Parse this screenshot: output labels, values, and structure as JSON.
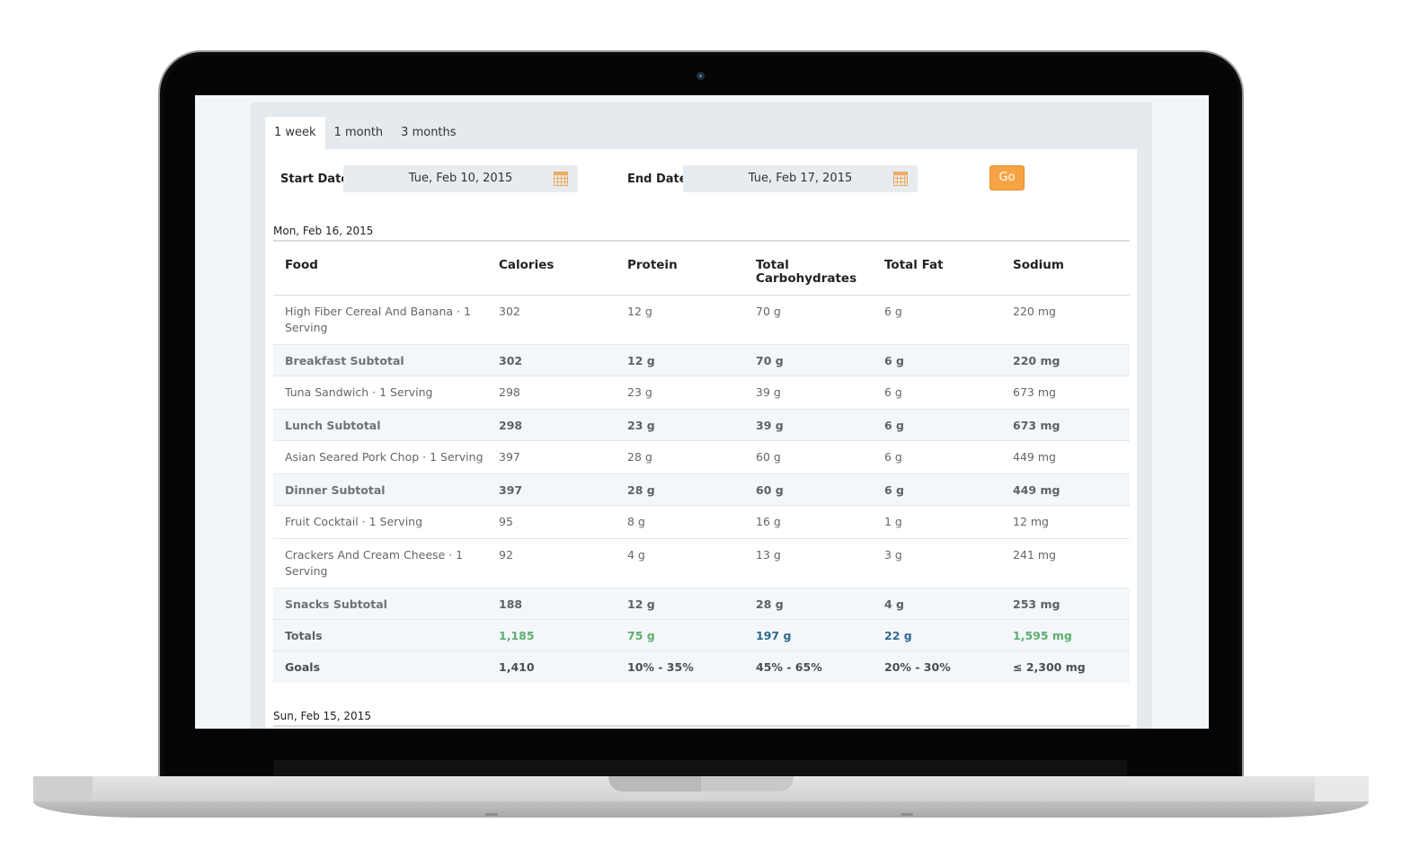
{
  "tabs": [
    {
      "label": "1 week",
      "active": true
    },
    {
      "label": "1 month",
      "active": false
    },
    {
      "label": "3 months",
      "active": false
    }
  ],
  "filters": {
    "start_label": "Start Date",
    "start_value": "Tue, Feb 10, 2015",
    "end_label": "End Date",
    "end_value": "Tue, Feb 17, 2015",
    "go_label": "Go",
    "calendar_icon": "calendar-icon",
    "accent_color": "#f6a443"
  },
  "days": [
    {
      "date": "Mon, Feb 16, 2015",
      "headers": {
        "food": "Food",
        "calories": "Calories",
        "protein": "Protein",
        "carbs": "Total Carbohydrates",
        "fat": "Total Fat",
        "sodium": "Sodium"
      },
      "rows": [
        {
          "food": "High Fiber Cereal And Banana · 1 Serving",
          "calories": "302",
          "protein": "12 g",
          "carbs": "70 g",
          "fat": "6 g",
          "sodium": "220 mg"
        },
        {
          "food": "Breakfast Subtotal",
          "calories": "302",
          "protein": "12 g",
          "carbs": "70 g",
          "fat": "6 g",
          "sodium": "220 mg"
        },
        {
          "food": "Tuna Sandwich · 1 Serving",
          "calories": "298",
          "protein": "23 g",
          "carbs": "39 g",
          "fat": "6 g",
          "sodium": "673 mg"
        },
        {
          "food": "Lunch Subtotal",
          "calories": "298",
          "protein": "23 g",
          "carbs": "39 g",
          "fat": "6 g",
          "sodium": "673 mg"
        },
        {
          "food": "Asian Seared Pork Chop · 1 Serving",
          "calories": "397",
          "protein": "28 g",
          "carbs": "60 g",
          "fat": "6 g",
          "sodium": "449 mg"
        },
        {
          "food": "Dinner Subtotal",
          "calories": "397",
          "protein": "28 g",
          "carbs": "60 g",
          "fat": "6 g",
          "sodium": "449 mg"
        },
        {
          "food": "Fruit Cocktail · 1 Serving",
          "calories": "95",
          "protein": "8 g",
          "carbs": "16 g",
          "fat": "1 g",
          "sodium": "12 mg"
        },
        {
          "food": "Crackers And Cream Cheese · 1 Serving",
          "calories": "92",
          "protein": "4 g",
          "carbs": "13 g",
          "fat": "3 g",
          "sodium": "241 mg"
        },
        {
          "food": "Snacks Subtotal",
          "calories": "188",
          "protein": "12 g",
          "carbs": "28 g",
          "fat": "4 g",
          "sodium": "253 mg"
        },
        {
          "food": "Totals",
          "calories": "1,185",
          "protein": "75 g",
          "carbs": "197 g",
          "fat": "22 g",
          "sodium": "1,595 mg"
        },
        {
          "food": "Goals",
          "calories": "1,410",
          "protein": "10% - 35%",
          "carbs": "45% - 65%",
          "fat": "20% - 30%",
          "sodium": "≤ 2,300 mg"
        }
      ]
    },
    {
      "date": "Sun, Feb 15, 2015"
    }
  ],
  "colors": {
    "within_goal": "#5fae6e",
    "over_goal": "#2f6a8f"
  }
}
